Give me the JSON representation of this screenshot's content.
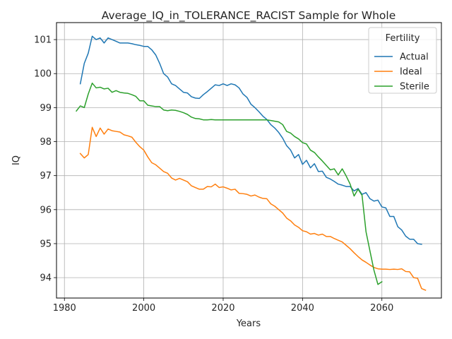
{
  "chart_data": {
    "type": "line",
    "title": "Average_IQ_in_TOLERANCE_RACIST Sample for Whole",
    "xlabel": "Years",
    "ylabel": "IQ",
    "xlim": [
      1978,
      2075
    ],
    "ylim": [
      93.4,
      101.5
    ],
    "x_ticks": [
      1980,
      2000,
      2020,
      2040,
      2060
    ],
    "y_ticks": [
      94,
      95,
      96,
      97,
      98,
      99,
      100,
      101
    ],
    "grid": true,
    "legend": {
      "title": "Fertility",
      "placement": "top-right"
    },
    "series": [
      {
        "name": "Actual",
        "color": "#1f77b4",
        "points": [
          [
            1984,
            99.7
          ],
          [
            1985,
            100.3
          ],
          [
            1986,
            100.6
          ],
          [
            1987,
            101.1
          ],
          [
            1988,
            101.0
          ],
          [
            1989,
            101.05
          ],
          [
            1990,
            100.9
          ],
          [
            1991,
            101.05
          ],
          [
            1992,
            101.0
          ],
          [
            1993,
            100.95
          ],
          [
            1994,
            100.9
          ],
          [
            1995,
            100.9
          ],
          [
            1996,
            100.9
          ],
          [
            1997,
            100.88
          ],
          [
            1998,
            100.85
          ],
          [
            1999,
            100.83
          ],
          [
            2000,
            100.8
          ],
          [
            2001,
            100.8
          ],
          [
            2002,
            100.7
          ],
          [
            2003,
            100.55
          ],
          [
            2004,
            100.3
          ],
          [
            2005,
            100.0
          ],
          [
            2006,
            99.9
          ],
          [
            2007,
            99.7
          ],
          [
            2008,
            99.65
          ],
          [
            2009,
            99.55
          ],
          [
            2010,
            99.45
          ],
          [
            2011,
            99.43
          ],
          [
            2012,
            99.32
          ],
          [
            2013,
            99.28
          ],
          [
            2014,
            99.27
          ],
          [
            2015,
            99.38
          ],
          [
            2016,
            99.47
          ],
          [
            2017,
            99.57
          ],
          [
            2018,
            99.67
          ],
          [
            2019,
            99.65
          ],
          [
            2020,
            99.7
          ],
          [
            2021,
            99.65
          ],
          [
            2022,
            99.7
          ],
          [
            2023,
            99.67
          ],
          [
            2024,
            99.58
          ],
          [
            2025,
            99.4
          ],
          [
            2026,
            99.3
          ],
          [
            2027,
            99.1
          ],
          [
            2028,
            99.0
          ],
          [
            2029,
            98.88
          ],
          [
            2030,
            98.75
          ],
          [
            2031,
            98.65
          ],
          [
            2032,
            98.5
          ],
          [
            2033,
            98.4
          ],
          [
            2034,
            98.27
          ],
          [
            2035,
            98.1
          ],
          [
            2036,
            97.88
          ],
          [
            2037,
            97.75
          ],
          [
            2038,
            97.52
          ],
          [
            2039,
            97.62
          ],
          [
            2040,
            97.33
          ],
          [
            2041,
            97.45
          ],
          [
            2042,
            97.23
          ],
          [
            2043,
            97.35
          ],
          [
            2044,
            97.12
          ],
          [
            2045,
            97.13
          ],
          [
            2046,
            96.95
          ],
          [
            2047,
            96.9
          ],
          [
            2048,
            96.83
          ],
          [
            2049,
            96.75
          ],
          [
            2050,
            96.72
          ],
          [
            2051,
            96.68
          ],
          [
            2052,
            96.68
          ],
          [
            2053,
            96.55
          ],
          [
            2054,
            96.62
          ],
          [
            2055,
            96.45
          ],
          [
            2056,
            96.5
          ],
          [
            2057,
            96.32
          ],
          [
            2058,
            96.25
          ],
          [
            2059,
            96.28
          ],
          [
            2060,
            96.08
          ],
          [
            2061,
            96.05
          ],
          [
            2062,
            95.8
          ],
          [
            2063,
            95.8
          ],
          [
            2064,
            95.5
          ],
          [
            2065,
            95.4
          ],
          [
            2066,
            95.22
          ],
          [
            2067,
            95.13
          ],
          [
            2068,
            95.13
          ],
          [
            2069,
            95.0
          ],
          [
            2070,
            94.98
          ]
        ]
      },
      {
        "name": "Ideal",
        "color": "#ff7f0e",
        "points": [
          [
            1984,
            97.65
          ],
          [
            1985,
            97.52
          ],
          [
            1986,
            97.62
          ],
          [
            1987,
            98.42
          ],
          [
            1988,
            98.15
          ],
          [
            1989,
            98.4
          ],
          [
            1990,
            98.22
          ],
          [
            1991,
            98.37
          ],
          [
            1992,
            98.32
          ],
          [
            1993,
            98.3
          ],
          [
            1994,
            98.28
          ],
          [
            1995,
            98.2
          ],
          [
            1996,
            98.17
          ],
          [
            1997,
            98.13
          ],
          [
            1998,
            97.98
          ],
          [
            1999,
            97.85
          ],
          [
            2000,
            97.75
          ],
          [
            2001,
            97.55
          ],
          [
            2002,
            97.38
          ],
          [
            2003,
            97.32
          ],
          [
            2004,
            97.22
          ],
          [
            2005,
            97.12
          ],
          [
            2006,
            97.07
          ],
          [
            2007,
            96.93
          ],
          [
            2008,
            96.87
          ],
          [
            2009,
            96.92
          ],
          [
            2010,
            96.87
          ],
          [
            2011,
            96.82
          ],
          [
            2012,
            96.7
          ],
          [
            2013,
            96.65
          ],
          [
            2014,
            96.6
          ],
          [
            2015,
            96.6
          ],
          [
            2016,
            96.68
          ],
          [
            2017,
            96.67
          ],
          [
            2018,
            96.75
          ],
          [
            2019,
            96.65
          ],
          [
            2020,
            96.67
          ],
          [
            2021,
            96.63
          ],
          [
            2022,
            96.58
          ],
          [
            2023,
            96.6
          ],
          [
            2024,
            96.48
          ],
          [
            2025,
            96.47
          ],
          [
            2026,
            96.45
          ],
          [
            2027,
            96.4
          ],
          [
            2028,
            96.43
          ],
          [
            2029,
            96.37
          ],
          [
            2030,
            96.33
          ],
          [
            2031,
            96.32
          ],
          [
            2032,
            96.17
          ],
          [
            2033,
            96.1
          ],
          [
            2034,
            96.0
          ],
          [
            2035,
            95.9
          ],
          [
            2036,
            95.75
          ],
          [
            2037,
            95.67
          ],
          [
            2038,
            95.55
          ],
          [
            2039,
            95.48
          ],
          [
            2040,
            95.38
          ],
          [
            2041,
            95.35
          ],
          [
            2042,
            95.28
          ],
          [
            2043,
            95.3
          ],
          [
            2044,
            95.25
          ],
          [
            2045,
            95.28
          ],
          [
            2046,
            95.21
          ],
          [
            2047,
            95.21
          ],
          [
            2048,
            95.15
          ],
          [
            2049,
            95.1
          ],
          [
            2050,
            95.05
          ],
          [
            2051,
            94.95
          ],
          [
            2052,
            94.85
          ],
          [
            2053,
            94.73
          ],
          [
            2054,
            94.62
          ],
          [
            2055,
            94.52
          ],
          [
            2056,
            94.45
          ],
          [
            2057,
            94.37
          ],
          [
            2058,
            94.3
          ],
          [
            2059,
            94.26
          ],
          [
            2060,
            94.25
          ],
          [
            2061,
            94.25
          ],
          [
            2062,
            94.24
          ],
          [
            2063,
            94.25
          ],
          [
            2064,
            94.24
          ],
          [
            2065,
            94.26
          ],
          [
            2066,
            94.18
          ],
          [
            2067,
            94.17
          ],
          [
            2068,
            94.0
          ],
          [
            2069,
            93.98
          ],
          [
            2070,
            93.68
          ],
          [
            2071,
            93.63
          ]
        ]
      },
      {
        "name": "Sterile",
        "color": "#2ca02c",
        "points": [
          [
            1983,
            98.9
          ],
          [
            1984,
            99.05
          ],
          [
            1985,
            99.0
          ],
          [
            1986,
            99.4
          ],
          [
            1987,
            99.72
          ],
          [
            1988,
            99.58
          ],
          [
            1989,
            99.6
          ],
          [
            1990,
            99.55
          ],
          [
            1991,
            99.57
          ],
          [
            1992,
            99.45
          ],
          [
            1993,
            99.5
          ],
          [
            1994,
            99.45
          ],
          [
            1995,
            99.43
          ],
          [
            1996,
            99.42
          ],
          [
            1997,
            99.38
          ],
          [
            1998,
            99.33
          ],
          [
            1999,
            99.2
          ],
          [
            2000,
            99.2
          ],
          [
            2001,
            99.07
          ],
          [
            2002,
            99.05
          ],
          [
            2003,
            99.03
          ],
          [
            2004,
            99.03
          ],
          [
            2005,
            98.93
          ],
          [
            2006,
            98.91
          ],
          [
            2007,
            98.93
          ],
          [
            2008,
            98.92
          ],
          [
            2009,
            98.89
          ],
          [
            2010,
            98.85
          ],
          [
            2011,
            98.8
          ],
          [
            2012,
            98.72
          ],
          [
            2013,
            98.68
          ],
          [
            2014,
            98.67
          ],
          [
            2015,
            98.64
          ],
          [
            2016,
            98.64
          ],
          [
            2017,
            98.65
          ],
          [
            2018,
            98.64
          ],
          [
            2019,
            98.64
          ],
          [
            2020,
            98.64
          ],
          [
            2021,
            98.64
          ],
          [
            2022,
            98.64
          ],
          [
            2023,
            98.64
          ],
          [
            2024,
            98.64
          ],
          [
            2025,
            98.64
          ],
          [
            2026,
            98.64
          ],
          [
            2027,
            98.64
          ],
          [
            2028,
            98.64
          ],
          [
            2029,
            98.64
          ],
          [
            2030,
            98.64
          ],
          [
            2031,
            98.64
          ],
          [
            2032,
            98.62
          ],
          [
            2033,
            98.6
          ],
          [
            2034,
            98.58
          ],
          [
            2035,
            98.5
          ],
          [
            2036,
            98.3
          ],
          [
            2037,
            98.25
          ],
          [
            2038,
            98.15
          ],
          [
            2039,
            98.08
          ],
          [
            2040,
            97.97
          ],
          [
            2041,
            97.93
          ],
          [
            2042,
            97.75
          ],
          [
            2043,
            97.68
          ],
          [
            2044,
            97.55
          ],
          [
            2045,
            97.43
          ],
          [
            2046,
            97.3
          ],
          [
            2047,
            97.17
          ],
          [
            2048,
            97.2
          ],
          [
            2049,
            97.02
          ],
          [
            2050,
            97.2
          ],
          [
            2051,
            96.99
          ],
          [
            2052,
            96.75
          ],
          [
            2053,
            96.4
          ],
          [
            2054,
            96.6
          ],
          [
            2055,
            96.42
          ],
          [
            2056,
            95.35
          ],
          [
            2057,
            94.78
          ],
          [
            2058,
            94.22
          ],
          [
            2059,
            93.8
          ],
          [
            2060,
            93.88
          ]
        ]
      }
    ]
  }
}
